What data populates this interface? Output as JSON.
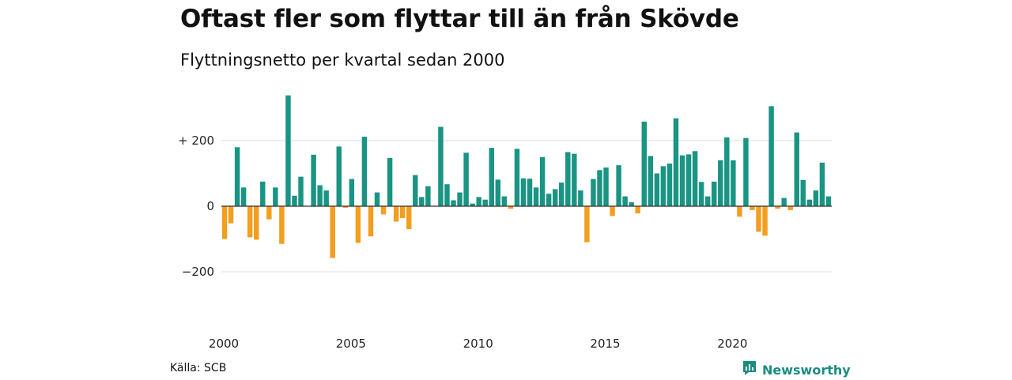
{
  "header": {
    "title": "Oftast fler som flyttar till än från Skövde",
    "subtitle": "Flyttningsnetto per kvartal sedan 2000"
  },
  "footer": {
    "source": "Källa: SCB",
    "brand": "Newsworthy"
  },
  "colors": {
    "positive": "#1a9483",
    "negative": "#f29e1e",
    "grid": "#dddddd",
    "brand": "#1a8d80"
  },
  "brand_icon": "newsworthy-logo-icon",
  "chart_data": {
    "type": "bar",
    "title": "Oftast fler som flyttar till än från Skövde",
    "subtitle": "Flyttningsnetto per kvartal sedan 2000",
    "xlabel": "",
    "ylabel": "",
    "ylim": [
      -270,
      330
    ],
    "grid": true,
    "y_ticks": [
      {
        "value": 200,
        "label": "+ 200"
      },
      {
        "value": 0,
        "label": "0"
      },
      {
        "value": -200,
        "label": "−200"
      }
    ],
    "x_start": 2000,
    "x_ticks": [
      2000,
      2005,
      2010,
      2015,
      2020
    ],
    "values": [
      -100,
      -52,
      180,
      57,
      -95,
      -102,
      75,
      -40,
      57,
      -115,
      338,
      32,
      90,
      0,
      157,
      64,
      48,
      -158,
      182,
      -5,
      83,
      -112,
      212,
      -92,
      42,
      -25,
      147,
      -47,
      -36,
      -70,
      95,
      28,
      61,
      0,
      242,
      67,
      18,
      42,
      163,
      8,
      28,
      20,
      178,
      81,
      30,
      -8,
      175,
      85,
      84,
      57,
      150,
      38,
      52,
      72,
      165,
      160,
      48,
      -110,
      83,
      110,
      118,
      -30,
      125,
      30,
      12,
      -22,
      258,
      153,
      100,
      122,
      130,
      268,
      155,
      158,
      168,
      74,
      30,
      75,
      140,
      210,
      140,
      -32,
      208,
      -12,
      -78,
      -90,
      305,
      -8,
      25,
      -12,
      225,
      80,
      20,
      48,
      133,
      30
    ]
  }
}
